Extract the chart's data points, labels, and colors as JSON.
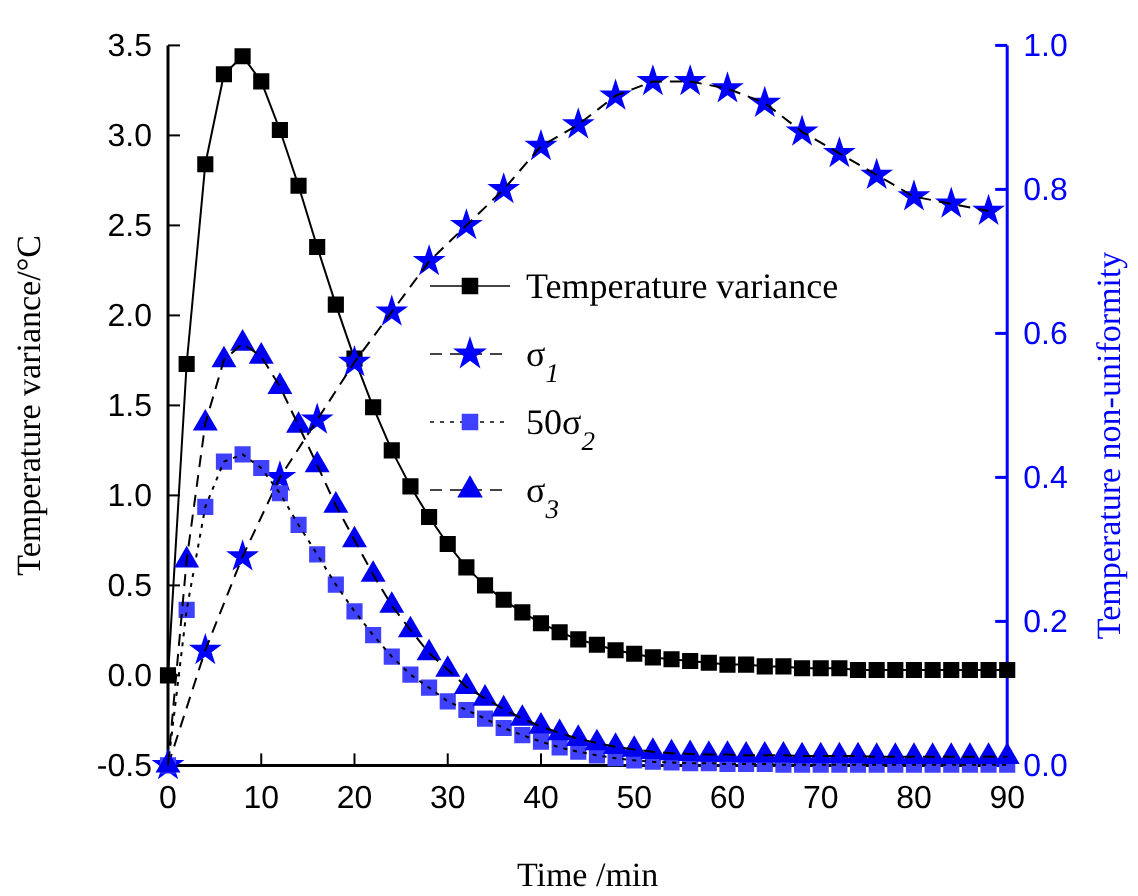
{
  "chart_data": {
    "type": "line",
    "xlabel": "Time /min",
    "ylabel": "Temperature variance/°C",
    "y2label": "Temperature non-uniformity",
    "xlim": [
      0,
      90
    ],
    "xticks": [
      0,
      10,
      20,
      30,
      40,
      50,
      60,
      70,
      80,
      90
    ],
    "ylim": [
      -0.5,
      3.5
    ],
    "yticks": [
      {
        "value": -0.5,
        "label": "-0.5"
      },
      {
        "value": 0,
        "label": "0.0"
      },
      {
        "value": 0.5,
        "label": "0.5"
      },
      {
        "value": 1,
        "label": "1.0"
      },
      {
        "value": 1.5,
        "label": "1.5"
      },
      {
        "value": 2,
        "label": "2.0"
      },
      {
        "value": 2.5,
        "label": "2.5"
      },
      {
        "value": 3,
        "label": "3.0"
      },
      {
        "value": 3.5,
        "label": "3.5"
      }
    ],
    "y2lim": [
      0,
      1
    ],
    "y2ticks": [
      {
        "value": 0,
        "label": "0.0"
      },
      {
        "value": 0.2,
        "label": "0.2"
      },
      {
        "value": 0.4,
        "label": "0.4"
      },
      {
        "value": 0.6,
        "label": "0.6"
      },
      {
        "value": 0.8,
        "label": "0.8"
      },
      {
        "value": 1,
        "label": "1.0"
      }
    ],
    "legend": "center",
    "grid": false,
    "series": [
      {
        "name": "Temperature variance",
        "color": "#000000",
        "marker": "square",
        "line_style": "solid",
        "x": [
          0,
          2,
          4,
          6,
          8,
          10,
          12,
          14,
          16,
          18,
          20,
          22,
          24,
          26,
          28,
          30,
          32,
          34,
          36,
          38,
          40,
          42,
          44,
          46,
          48,
          50,
          52,
          54,
          56,
          58,
          60,
          62,
          64,
          66,
          68,
          70,
          72,
          74,
          76,
          78,
          80,
          82,
          84,
          86,
          88,
          90
        ],
        "values": [
          0,
          1.73,
          2.84,
          3.34,
          3.44,
          3.3,
          3.03,
          2.72,
          2.38,
          2.06,
          1.76,
          1.49,
          1.25,
          1.05,
          0.88,
          0.73,
          0.6,
          0.5,
          0.42,
          0.35,
          0.29,
          0.24,
          0.2,
          0.17,
          0.14,
          0.12,
          0.1,
          0.09,
          0.08,
          0.07,
          0.06,
          0.06,
          0.05,
          0.05,
          0.04,
          0.04,
          0.04,
          0.03,
          0.03,
          0.03,
          0.03,
          0.03,
          0.03,
          0.03,
          0.03,
          0.03
        ]
      },
      {
        "name": "σ$_{1}$",
        "color": "#0000ff",
        "marker": "star",
        "line_style": "dashed",
        "axis": "y2",
        "x": [
          0,
          4,
          8,
          12,
          16,
          20,
          24,
          28,
          32,
          36,
          40,
          44,
          48,
          52,
          56,
          60,
          64,
          68,
          72,
          76,
          80,
          84,
          88
        ],
        "values": [
          0,
          0.16,
          0.29,
          0.4,
          0.48,
          0.56,
          0.63,
          0.7,
          0.75,
          0.8,
          0.86,
          0.89,
          0.93,
          0.95,
          0.95,
          0.94,
          0.92,
          0.88,
          0.85,
          0.82,
          0.79,
          0.78,
          0.77
        ]
      },
      {
        "name": "50σ$_{2}$",
        "color": "#4040ff",
        "marker": "square",
        "line_style": "dotted",
        "axis": "y2",
        "x": [
          0,
          2,
          4,
          6,
          8,
          10,
          12,
          14,
          16,
          18,
          20,
          22,
          24,
          26,
          28,
          30,
          32,
          34,
          36,
          38,
          40,
          42,
          44,
          46,
          48,
          50,
          52,
          54,
          56,
          58,
          60,
          62,
          64,
          66,
          68,
          70,
          72,
          74,
          76,
          78,
          80,
          82,
          84,
          86,
          88,
          90
        ],
        "values": [
          0,
          0.216,
          0.359,
          0.422,
          0.432,
          0.413,
          0.378,
          0.334,
          0.293,
          0.251,
          0.214,
          0.181,
          0.151,
          0.126,
          0.108,
          0.089,
          0.077,
          0.065,
          0.052,
          0.042,
          0.033,
          0.025,
          0.019,
          0.014,
          0.01,
          0.007,
          0.005,
          0.004,
          0.003,
          0.003,
          0.002,
          0.002,
          0.002,
          0.001,
          0.001,
          0.001,
          0.001,
          0.001,
          0.001,
          0.001,
          0.001,
          0.001,
          0.001,
          0.001,
          0.001,
          0.001
        ]
      },
      {
        "name": "σ$_{3}$",
        "color": "#0000f0",
        "marker": "triangle",
        "line_style": "dashed",
        "axis": "y2",
        "x": [
          0,
          2,
          4,
          6,
          8,
          10,
          12,
          14,
          16,
          18,
          20,
          22,
          24,
          26,
          28,
          30,
          32,
          34,
          36,
          38,
          40,
          42,
          44,
          46,
          48,
          50,
          52,
          54,
          56,
          58,
          60,
          62,
          64,
          66,
          68,
          70,
          72,
          74,
          76,
          78,
          80,
          82,
          84,
          86,
          88,
          90
        ],
        "values": [
          0,
          0.285,
          0.475,
          0.563,
          0.586,
          0.568,
          0.526,
          0.472,
          0.417,
          0.361,
          0.313,
          0.265,
          0.222,
          0.188,
          0.156,
          0.133,
          0.109,
          0.093,
          0.078,
          0.065,
          0.054,
          0.045,
          0.037,
          0.031,
          0.026,
          0.022,
          0.019,
          0.017,
          0.016,
          0.015,
          0.015,
          0.014,
          0.014,
          0.014,
          0.013,
          0.013,
          0.013,
          0.013,
          0.012,
          0.012,
          0.012,
          0.012,
          0.012,
          0.012,
          0.012,
          0.012
        ]
      }
    ]
  }
}
